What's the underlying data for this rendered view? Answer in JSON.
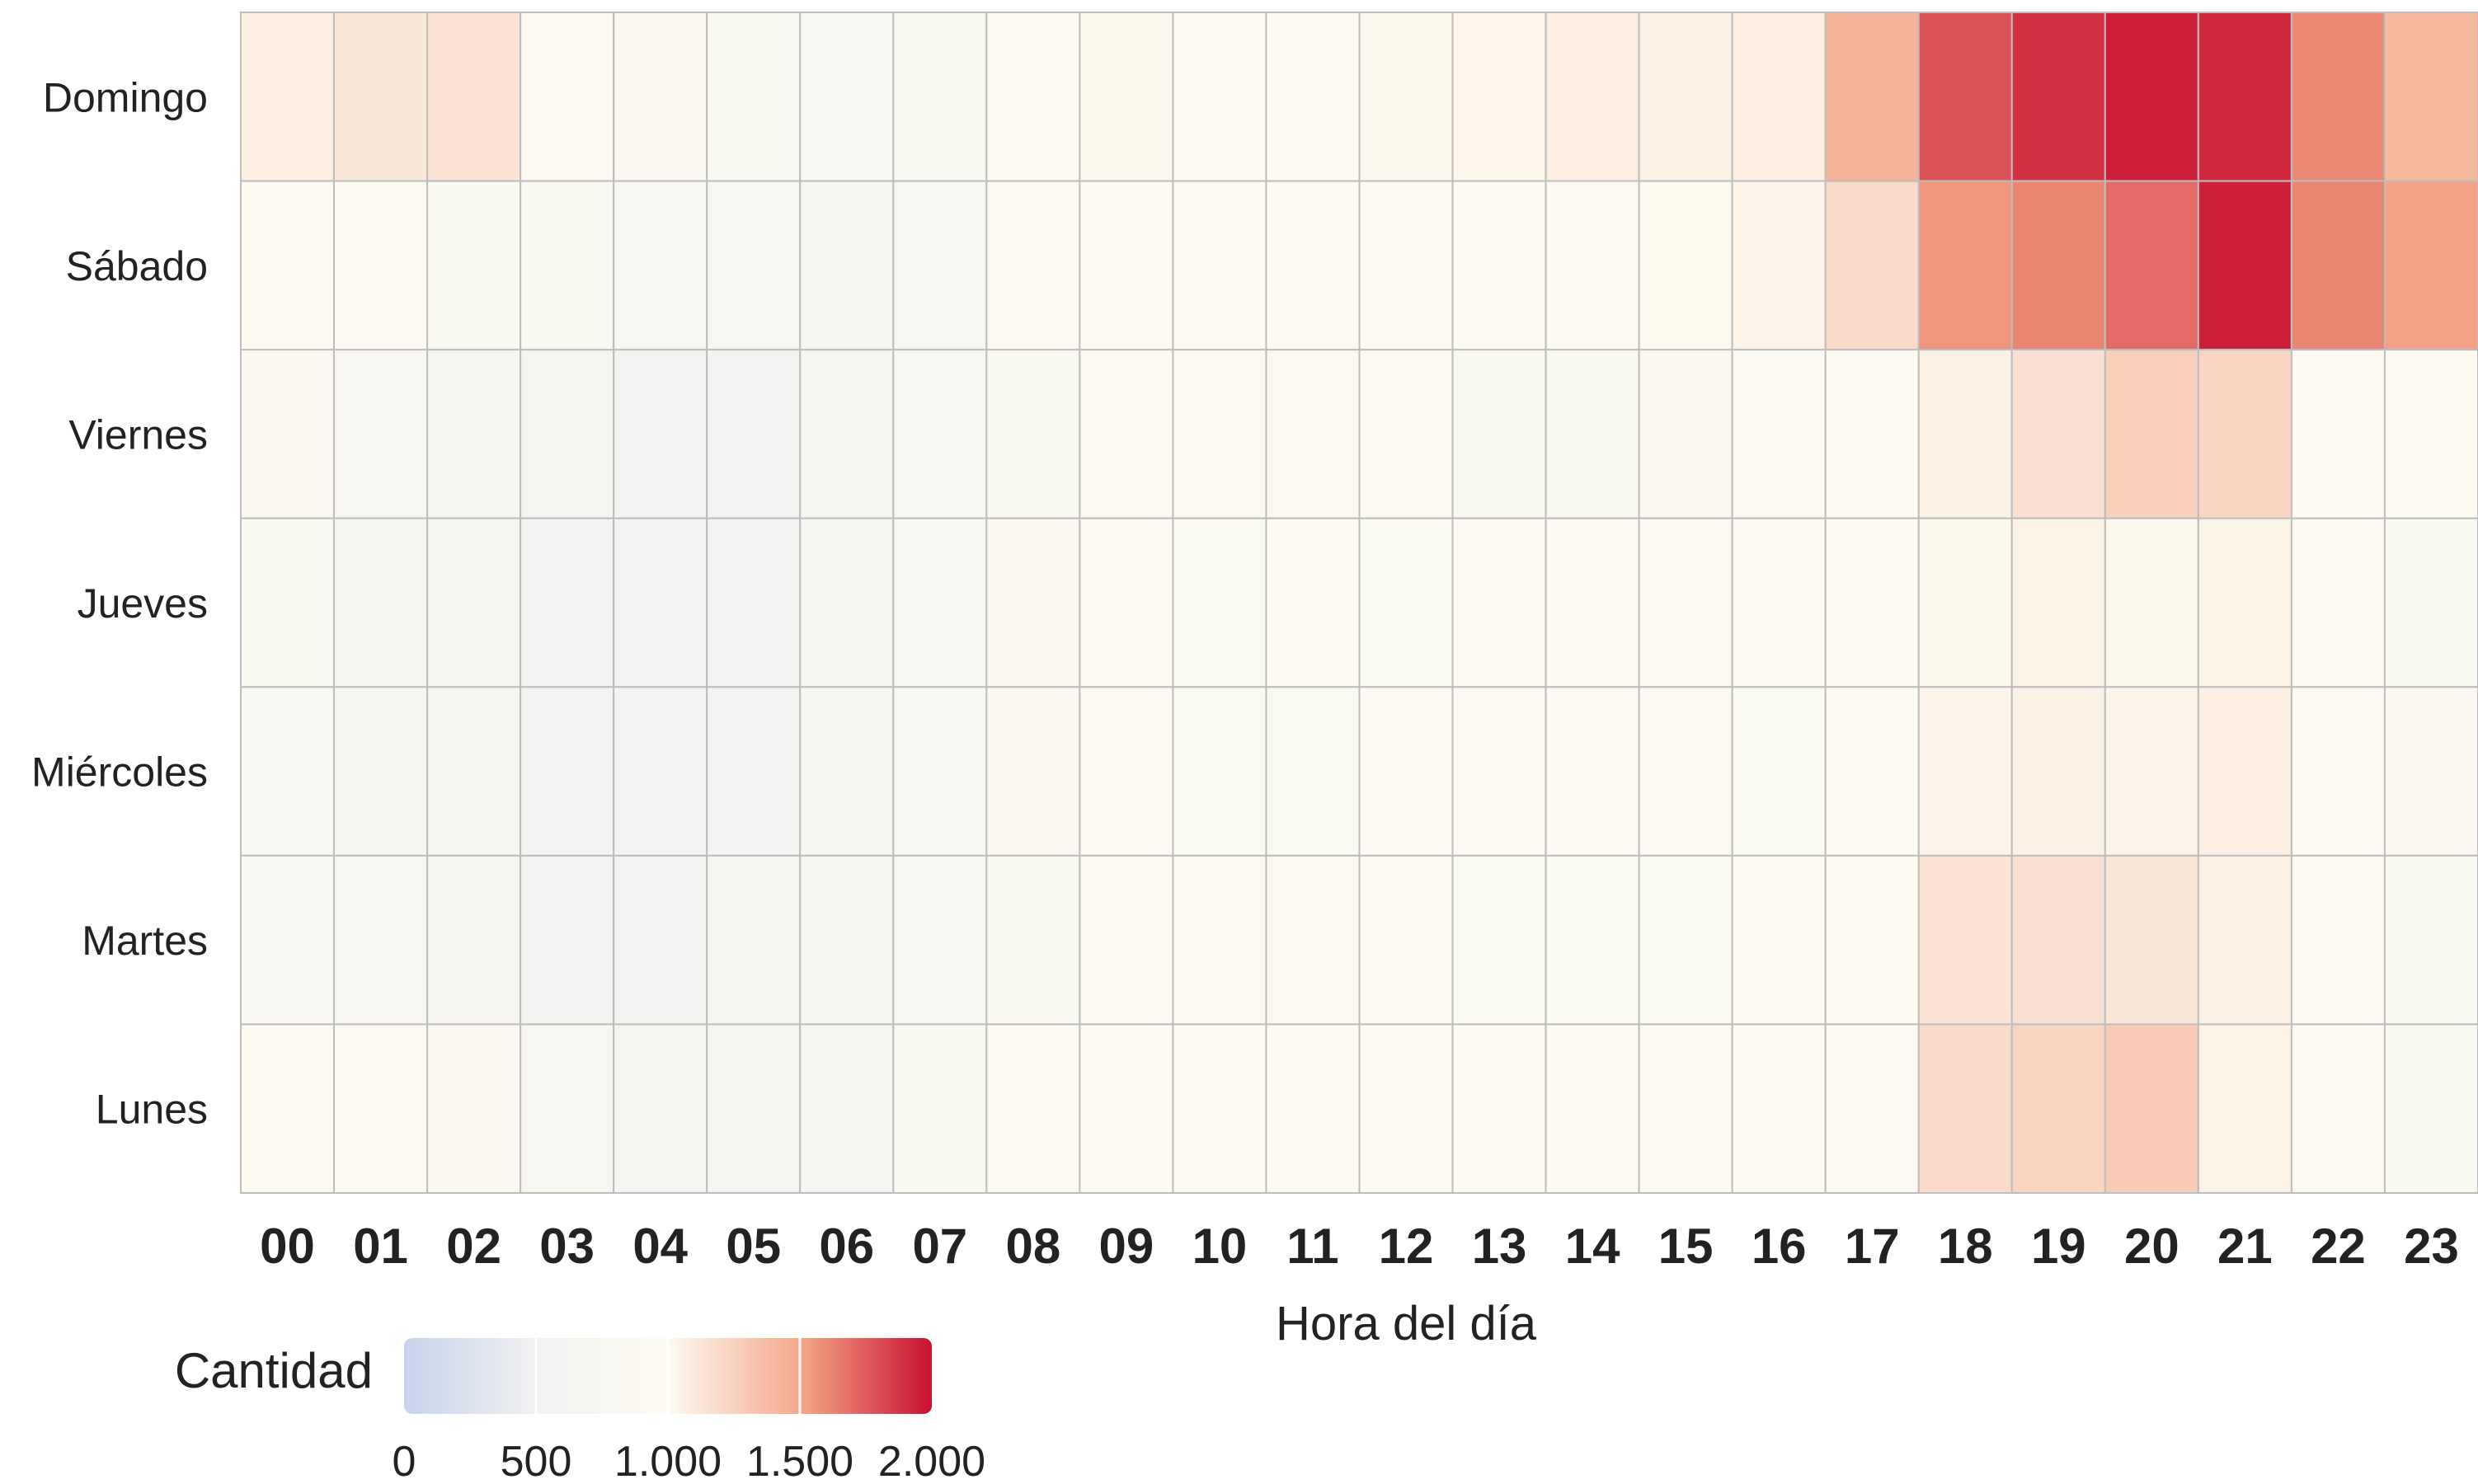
{
  "chart_data": {
    "type": "heatmap",
    "title": "",
    "xlabel": "Hora del día",
    "ylabel": "",
    "x_categories": [
      "00",
      "01",
      "02",
      "03",
      "04",
      "05",
      "06",
      "07",
      "08",
      "09",
      "10",
      "11",
      "12",
      "13",
      "14",
      "15",
      "16",
      "17",
      "18",
      "19",
      "20",
      "21",
      "22",
      "23"
    ],
    "y_categories": [
      "Domingo",
      "Sábado",
      "Viernes",
      "Jueves",
      "Miércoles",
      "Martes",
      "Lunes"
    ],
    "values": [
      [
        1080,
        1120,
        1140,
        900,
        870,
        840,
        790,
        880,
        950,
        1020,
        990,
        1000,
        1020,
        1030,
        1080,
        1060,
        1080,
        1430,
        1780,
        1890,
        1950,
        1920,
        1600,
        1400
      ],
      [
        970,
        920,
        880,
        830,
        760,
        730,
        700,
        750,
        900,
        950,
        960,
        960,
        980,
        990,
        1000,
        1010,
        1040,
        1190,
        1560,
        1620,
        1700,
        1950,
        1620,
        1520
      ],
      [
        860,
        760,
        720,
        650,
        590,
        600,
        670,
        780,
        880,
        900,
        910,
        910,
        900,
        890,
        880,
        860,
        910,
        980,
        1060,
        1160,
        1260,
        1230,
        1000,
        990
      ],
      [
        850,
        720,
        640,
        600,
        580,
        610,
        700,
        800,
        870,
        920,
        930,
        940,
        930,
        910,
        910,
        900,
        920,
        980,
        1020,
        1050,
        1020,
        1050,
        920,
        890
      ],
      [
        820,
        700,
        640,
        600,
        600,
        620,
        700,
        800,
        870,
        910,
        930,
        930,
        920,
        920,
        910,
        920,
        930,
        980,
        1040,
        1060,
        1040,
        1080,
        920,
        870
      ],
      [
        780,
        730,
        670,
        620,
        600,
        630,
        700,
        800,
        880,
        910,
        910,
        920,
        920,
        930,
        930,
        930,
        960,
        1000,
        1140,
        1160,
        1120,
        1060,
        920,
        880
      ],
      [
        1000,
        920,
        860,
        730,
        700,
        660,
        720,
        840,
        900,
        960,
        970,
        980,
        960,
        960,
        960,
        960,
        980,
        1000,
        1190,
        1230,
        1290,
        1050,
        920,
        880
      ]
    ],
    "zlim": [
      0,
      2000
    ],
    "colorbar": {
      "title": "Cantidad",
      "ticks": [
        0,
        500,
        1000,
        1500,
        2000
      ],
      "tick_labels": [
        "0",
        "500",
        "1.000",
        "1.500",
        "2.000"
      ],
      "colors": [
        "#c6d3ec",
        "#f1f1f1",
        "#fdfbf1",
        "#f5a889",
        "#c8102e"
      ]
    },
    "grid": true,
    "legend": "bottom-left"
  }
}
